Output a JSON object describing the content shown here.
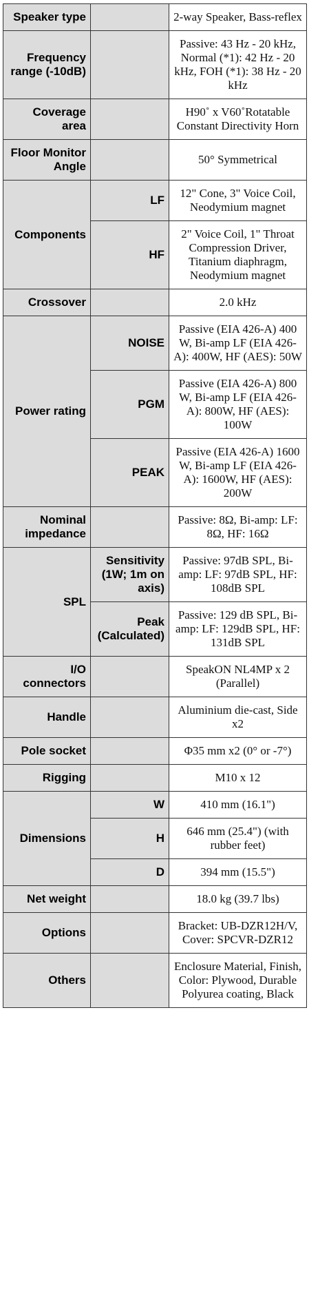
{
  "rows": [
    {
      "label": "Speaker type",
      "value": "2-way Speaker, Bass-reflex"
    },
    {
      "label": "Frequency range (-10dB)",
      "value": "Passive: 43 Hz - 20 kHz, Normal (*1): 42 Hz - 20 kHz, FOH (*1): 38 Hz - 20 kHz"
    },
    {
      "label": "Coverage area",
      "value": "H90˚ x V60˚Rotatable Constant Directivity Horn"
    },
    {
      "label": "Floor Monitor Angle",
      "value": "50° Symmetrical"
    },
    {
      "label": "Components",
      "parts": [
        {
          "label": "LF",
          "value": "12\" Cone, 3\" Voice Coil, Neodymium magnet"
        },
        {
          "label": "HF",
          "value": "2\" Voice Coil, 1\" Throat Compression Driver, Titanium diaphragm, Neodymium magnet"
        }
      ]
    },
    {
      "label": "Crossover",
      "value": "2.0 kHz"
    },
    {
      "label": "Power rating",
      "parts": [
        {
          "label": "NOISE",
          "value": "Passive (EIA 426-A) 400 W, Bi-amp LF (EIA 426-A): 400W, HF (AES): 50W"
        },
        {
          "label": "PGM",
          "value": "Passive (EIA 426-A) 800 W, Bi-amp LF (EIA 426-A): 800W, HF (AES): 100W"
        },
        {
          "label": "PEAK",
          "value": "Passive (EIA 426-A) 1600 W, Bi-amp LF (EIA 426-A): 1600W, HF (AES): 200W"
        }
      ]
    },
    {
      "label": "Nominal impedance",
      "value": "Passive: 8Ω, Bi-amp: LF: 8Ω, HF: 16Ω"
    },
    {
      "label": "SPL",
      "parts": [
        {
          "label": "Sensitivity (1W; 1m on axis)",
          "value": "Passive: 97dB SPL, Bi-amp: LF: 97dB SPL, HF: 108dB SPL"
        },
        {
          "label": "Peak (Calculated)",
          "value": "Passive: 129 dB SPL, Bi-amp: LF: 129dB SPL, HF: 131dB SPL"
        }
      ]
    },
    {
      "label": "I/O connectors",
      "value": "SpeakON NL4MP x 2 (Parallel)"
    },
    {
      "label": "Handle",
      "value": "Aluminium die-cast, Side x2"
    },
    {
      "label": "Pole socket",
      "value": "Φ35 mm x2 (0° or -7°)"
    },
    {
      "label": "Rigging",
      "value": "M10 x 12"
    },
    {
      "label": "Dimensions",
      "parts": [
        {
          "label": "W",
          "value": "410 mm (16.1\")"
        },
        {
          "label": "H",
          "value": "646 mm (25.4\") (with rubber feet)"
        },
        {
          "label": "D",
          "value": "394 mm (15.5\")"
        }
      ]
    },
    {
      "label": "Net weight",
      "value": "18.0 kg (39.7 lbs)"
    },
    {
      "label": "Options",
      "value": "Bracket: UB-DZR12H/V, Cover: SPCVR-DZR12"
    },
    {
      "label": "Others",
      "value": "Enclosure Material, Finish, Color: Plywood, Durable Polyurea coating, Black"
    }
  ]
}
